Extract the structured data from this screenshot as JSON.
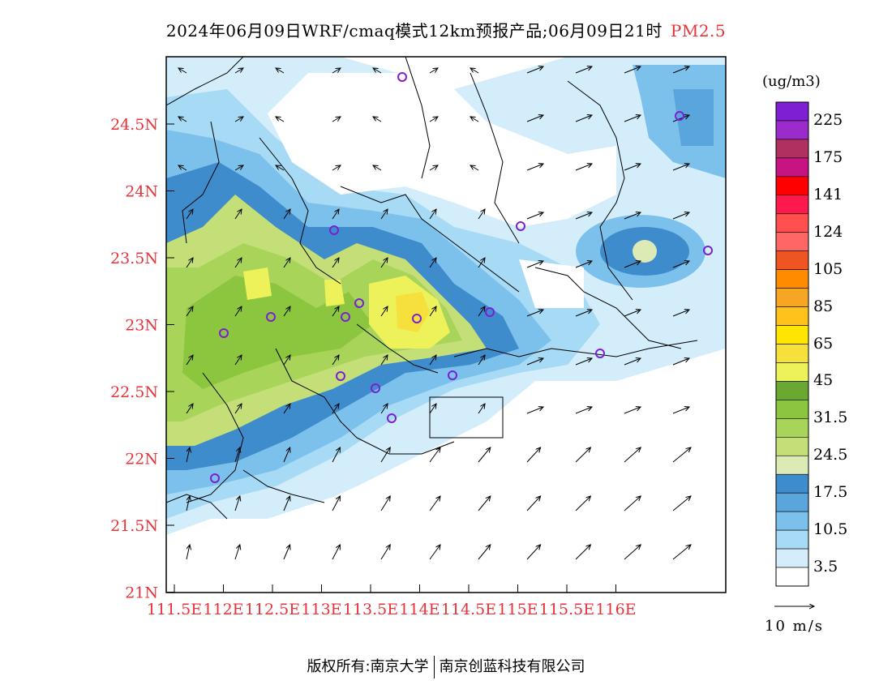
{
  "title": {
    "main": "2024年06月09日WRF/cmaq模式12km预报产品;06月09日21时",
    "pollutant": "PM2.5"
  },
  "colorbar": {
    "unit": "(ug/m3)",
    "labels": [
      "225",
      "175",
      "141",
      "124",
      "105",
      "85",
      "65",
      "45",
      "31.5",
      "24.5",
      "17.5",
      "10.5",
      "3.5"
    ],
    "colors": [
      "#7e1fd3",
      "#9b2ccb",
      "#b03060",
      "#c81483",
      "#ff0000",
      "#ff1a4d",
      "#ff5050",
      "#ff6666",
      "#ee5522",
      "#ff8c00",
      "#f5a623",
      "#ffc21a",
      "#ffe600",
      "#f5e03c",
      "#eef25a",
      "#6aa832",
      "#8cc63e",
      "#a9d45a",
      "#c4df78",
      "#dcebb5",
      "#3f8ccc",
      "#5aa5dc",
      "#7cc1eb",
      "#a6daf5",
      "#d4edfb",
      "#ffffff"
    ]
  },
  "axes": {
    "y_ticks": [
      "24.5N",
      "24N",
      "23.5N",
      "23N",
      "22.5N",
      "22N",
      "21.5N",
      "21N"
    ],
    "x_ticks": [
      "111.5E",
      "112E",
      "112.5E",
      "113E",
      "113.5E",
      "114E",
      "114.5E",
      "115E",
      "115.5E",
      "116E"
    ]
  },
  "wind_reference": "10 m/s",
  "footer": {
    "left": "版权所有:南京大学",
    "right": "南京创蓝科技有限公司"
  },
  "colors": {
    "axis_label": "#e8333a",
    "station_marker": "#7b1fd3"
  }
}
